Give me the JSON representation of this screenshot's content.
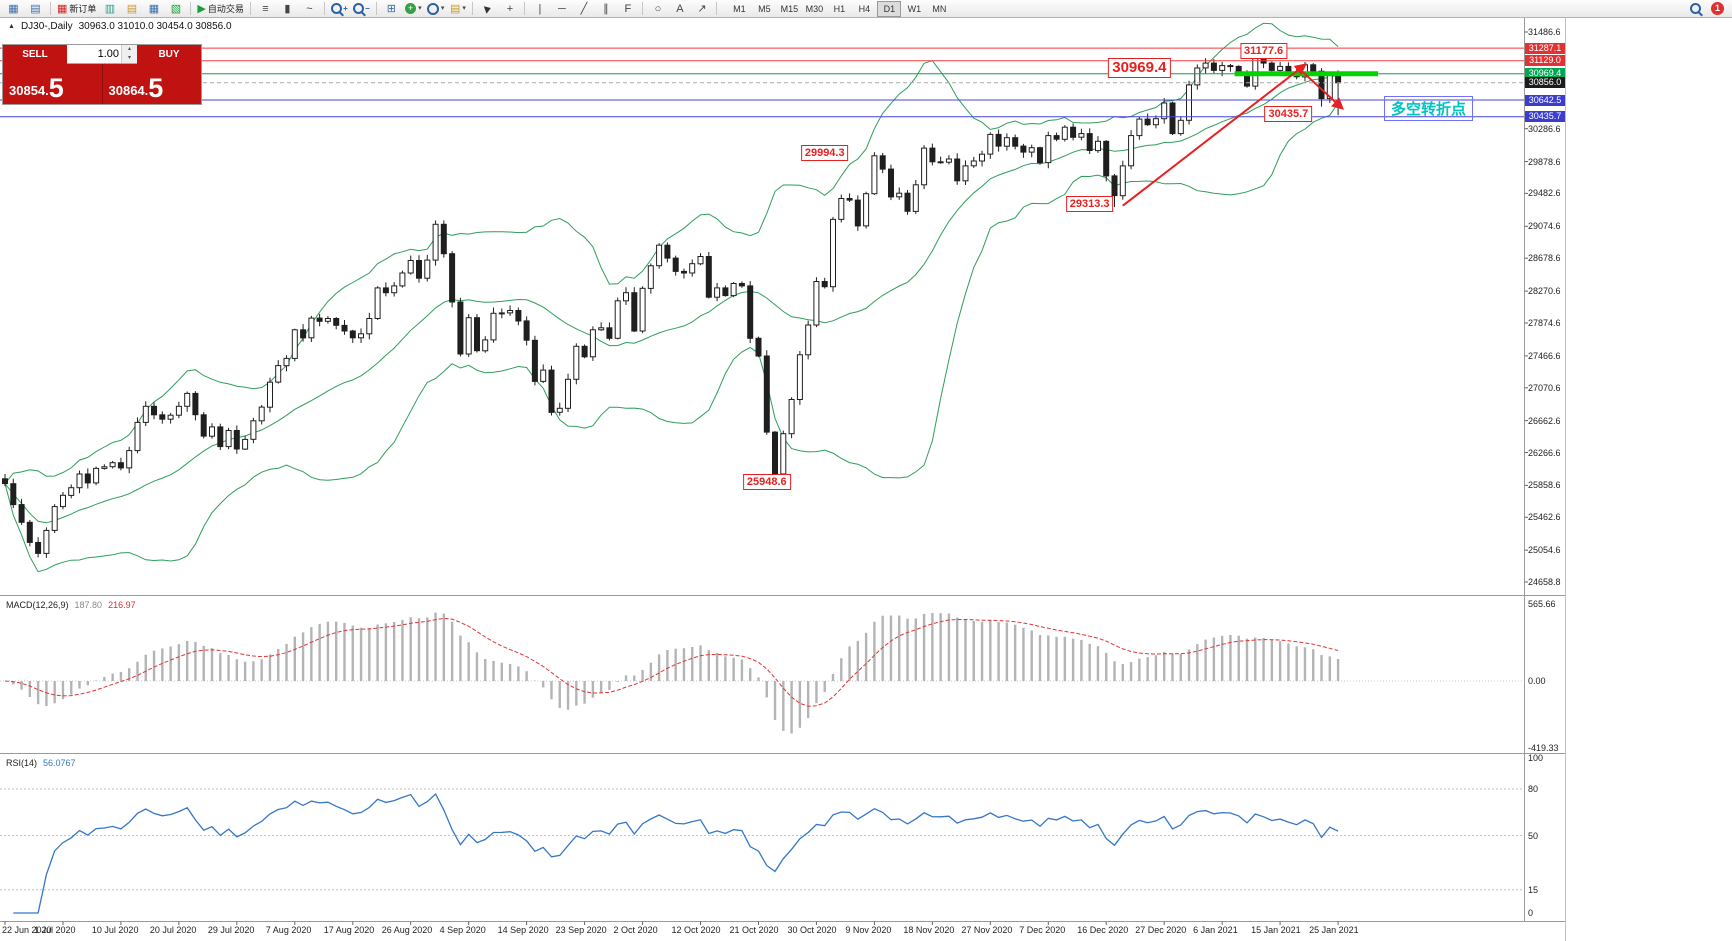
{
  "toolbar": {
    "new_order_label": "新订单",
    "auto_trading_label": "自动交易",
    "timeframes": [
      "M1",
      "M5",
      "M15",
      "M30",
      "H1",
      "H4",
      "D1",
      "W1",
      "MN"
    ],
    "active_timeframe": "D1",
    "badge": "1"
  },
  "icons": {
    "chart_window": "▦",
    "profile": "▤",
    "market_watch": "▥",
    "data_window": "▤",
    "navigator": "▦",
    "terminal": "▧",
    "new_order": "▦",
    "auto_trading": "▶",
    "bars_chart": "≡",
    "candle_chart": "▮",
    "line_chart": "~",
    "tile_windows": "⊞",
    "indicator_plus": "+",
    "dropdown": "▾",
    "crosshair": "+",
    "vline": "|",
    "hline": "─",
    "trendline": "╱",
    "channel": "∥",
    "fibonacci": "F",
    "shapes": "○",
    "text_tool": "A",
    "arrows_tool": "↗",
    "zoom_minus": "−",
    "spinner_up": "▴",
    "spinner_down": "▾",
    "marker": "▲"
  },
  "symbol_header": {
    "marker": "▲",
    "title": "DJ30-,Daily",
    "ohlc": "30963.0 31010.0 30454.0 30856.0"
  },
  "trade_panel": {
    "sell_label": "SELL",
    "buy_label": "BUY",
    "volume": "1.00",
    "sell_price": "30854.",
    "sell_price_big": "5",
    "buy_price": "30864.",
    "buy_price_big": "5"
  },
  "chart_data": {
    "type": "candlestick",
    "symbol": "DJ30-",
    "period": "Daily",
    "current_price": 30856.0,
    "x_labels": [
      "22 Jun 2020",
      "1 Jul 2020",
      "10 Jul 2020",
      "20 Jul 2020",
      "29 Jul 2020",
      "7 Aug 2020",
      "17 Aug 2020",
      "26 Aug 2020",
      "4 Sep 2020",
      "14 Sep 2020",
      "23 Sep 2020",
      "2 Oct 2020",
      "12 Oct 2020",
      "21 Oct 2020",
      "30 Oct 2020",
      "9 Nov 2020",
      "18 Nov 2020",
      "27 Nov 2020",
      "7 Dec 2020",
      "16 Dec 2020",
      "27 Dec 2020",
      "6 Jan 2021",
      "15 Jan 2021",
      "25 Jan 2021"
    ],
    "bars_per_label": 7,
    "closes": [
      25880,
      25620,
      25400,
      25150,
      25015,
      25300,
      25595,
      25735,
      25830,
      26000,
      25890,
      26070,
      26090,
      26140,
      26075,
      26290,
      26640,
      26840,
      26735,
      26680,
      26730,
      26840,
      27000,
      26735,
      26470,
      26585,
      26340,
      26540,
      26310,
      26430,
      26660,
      26830,
      27140,
      27345,
      27435,
      27790,
      27690,
      27935,
      27895,
      27930,
      27845,
      27775,
      27690,
      27740,
      27930,
      28310,
      28250,
      28335,
      28495,
      28650,
      28430,
      28655,
      29100,
      28735,
      28135,
      27490,
      27940,
      27530,
      27665,
      27995,
      28000,
      28030,
      27900,
      27660,
      27150,
      27290,
      26765,
      26815,
      27175,
      27585,
      27455,
      27790,
      27815,
      27685,
      28150,
      28250,
      27775,
      28305,
      28585,
      28840,
      28680,
      28515,
      28495,
      28610,
      28700,
      28195,
      28310,
      28215,
      28365,
      28335,
      27685,
      27465,
      26520,
      26000,
      26500,
      26925,
      27480,
      27850,
      28390,
      28325,
      29160,
      29420,
      29400,
      29080,
      29480,
      29950,
      29785,
      29440,
      29485,
      29260,
      29590,
      30045,
      29875,
      29870,
      29910,
      29640,
      29825,
      29885,
      29970,
      30215,
      30070,
      30175,
      30070,
      29995,
      30050,
      29865,
      30200,
      30155,
      30305,
      30180,
      30225,
      30015,
      30130,
      29700,
      29455,
      29825,
      30200,
      30405,
      30335,
      30410,
      30605,
      30225,
      30390,
      30830,
      31040,
      31100,
      31010,
      31070,
      31060,
      30990,
      30815,
      31170,
      31100,
      31010,
      31060,
      30990,
      30930,
      31080,
      31000,
      30660,
      30960,
      30856
    ],
    "overrides": {
      "93": {
        "low": 25948.6
      },
      "105": {
        "high": 29994.3
      },
      "134": {
        "low": 29313.3
      },
      "151": {
        "high": 31177.6
      },
      "159": {
        "low": 30560
      },
      "161": {
        "open": 30963.0,
        "high": 31010.0,
        "low": 30454.0,
        "close": 30856.0
      }
    },
    "bollinger": {
      "period": 20,
      "deviation": 2
    },
    "y_ticks": [
      "31486.6",
      "30286.6",
      "29878.6",
      "29482.6",
      "29074.6",
      "28678.6",
      "28270.6",
      "27874.6",
      "27466.6",
      "27070.6",
      "26662.6",
      "26266.6",
      "25858.6",
      "25462.6",
      "25054.6",
      "24658.8"
    ],
    "price_lines": [
      {
        "price": 31287.1,
        "color": "#f23b3b"
      },
      {
        "price": 31129.0,
        "color": "#f23b3b"
      },
      {
        "price": 30969.4,
        "color": "#00a651"
      },
      {
        "price": 30642.5,
        "color": "#4444dd"
      },
      {
        "price": 30435.7,
        "color": "#4444dd"
      }
    ],
    "price_tags": [
      {
        "label": "31287.1",
        "price": 31287.1,
        "bg": "#e03232"
      },
      {
        "label": "31129.0",
        "price": 31129.0,
        "bg": "#e03232"
      },
      {
        "label": "30969.4",
        "price": 30969.4,
        "bg": "#00a651"
      },
      {
        "label": "30856.0",
        "price": 30856.0,
        "bg": "#1c1c1c",
        "current": true
      },
      {
        "label": "30642.5",
        "price": 30642.5,
        "bg": "#3c3cd0"
      },
      {
        "label": "30435.7",
        "price": 30435.7,
        "bg": "#3c3cd0"
      }
    ],
    "annotations": [
      {
        "text": "31177.6",
        "bar": 152,
        "price": 31245
      },
      {
        "text": "30969.4",
        "bar": 137,
        "price": 31040,
        "large": true
      },
      {
        "text": "30435.7",
        "bar": 155,
        "price": 30470
      },
      {
        "text": "29994.3",
        "bar": 99,
        "price": 29985
      },
      {
        "text": "29313.3",
        "bar": 131,
        "price": 29350
      },
      {
        "text": "25948.6",
        "bar": 92,
        "price": 25900
      }
    ],
    "trend_lines": [
      {
        "from_bar": 135,
        "from_price": 29330,
        "to_bar": 157,
        "to_price": 31080,
        "arrow": true
      },
      {
        "from_bar": 156,
        "from_price": 31060,
        "to_bar": 161.5,
        "to_price": 30540,
        "arrow": true
      }
    ],
    "highlight_line": {
      "price": 30969.4,
      "from_bar": 148.5,
      "to_x": 1378,
      "width": 5
    },
    "callout": {
      "x": 1384,
      "y": 96,
      "text": "多空转折点"
    },
    "macd": {
      "label": "MACD(12,26,9)",
      "value_main": "187.80",
      "value_signal": "216.97",
      "fast": 12,
      "slow": 26,
      "signal": 9,
      "y_labels": [
        "565.66",
        "0.00",
        "-419.33"
      ]
    },
    "rsi": {
      "label": "RSI(14)",
      "value": "56.0767",
      "period": 14,
      "levels": [
        80,
        50,
        15
      ],
      "y_labels": [
        "100",
        "80",
        "50",
        "15",
        "0"
      ]
    },
    "colors": {
      "up": "#ffffff",
      "down": "#1f1f1f",
      "wick": "#1f1f1f",
      "bollinger": "#2e9e5b",
      "macd_hist": "#b4b4b4",
      "macd_signal": "#e03535",
      "rsi": "#3577c4",
      "annotation": "#e82020",
      "trend": "#e82020",
      "highlight": "#00d300",
      "current_line": "#aaaaaa"
    }
  }
}
